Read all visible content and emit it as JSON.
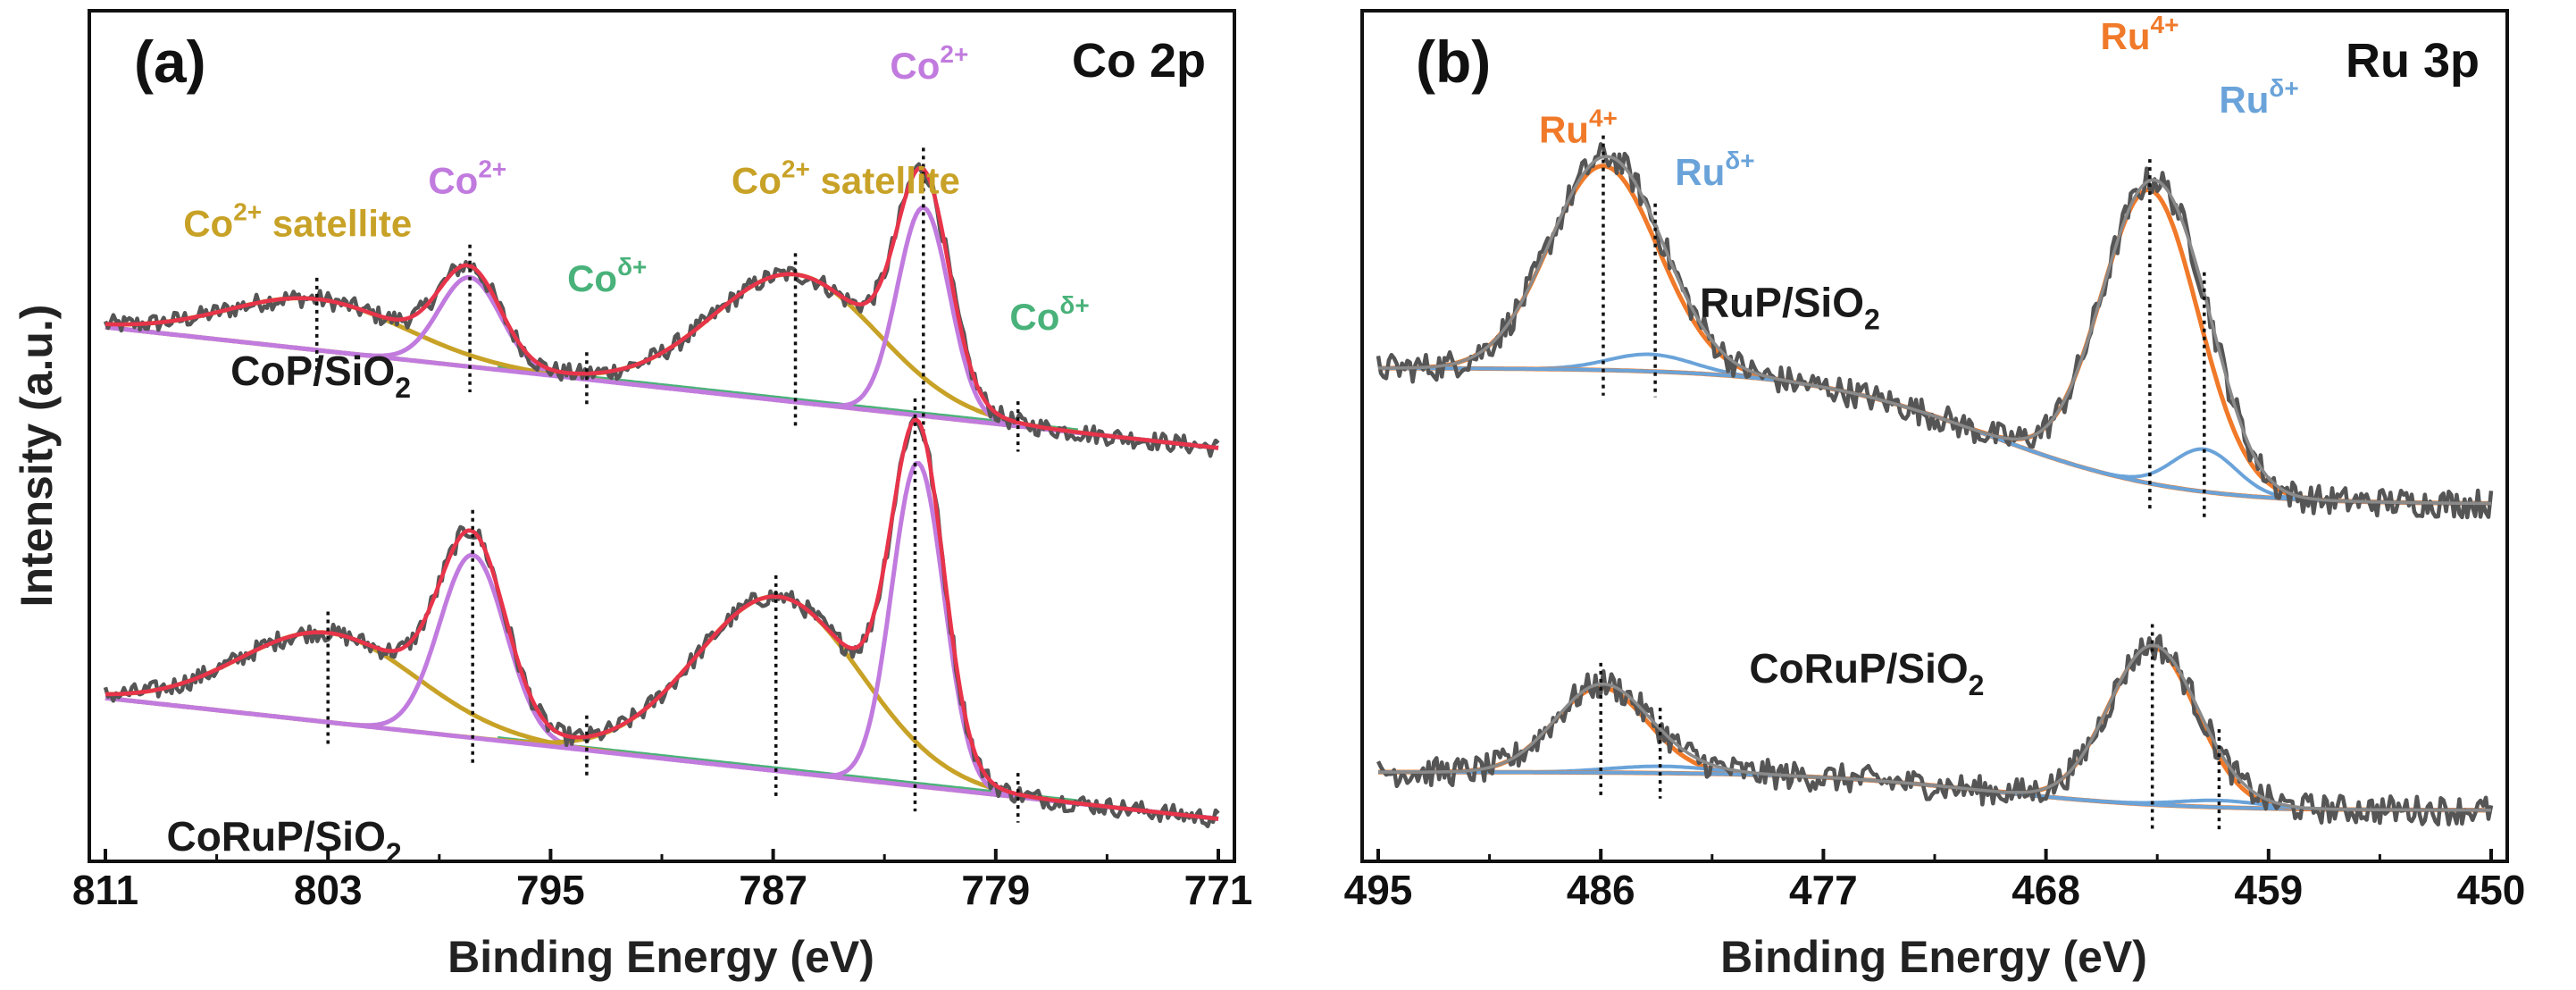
{
  "figure": {
    "y_axis_title": "Intensity (a.u.)",
    "x_axis_title": "Binding Energy (eV)"
  },
  "chart_data": [
    {
      "type": "line",
      "panel_label": "(a)",
      "title": "Co 2p",
      "xlabel": "Binding Energy (eV)",
      "ylabel": "Intensity (a.u.)",
      "xlim": [
        811,
        771
      ],
      "x_ticks": [
        "811",
        "803",
        "795",
        "787",
        "779",
        "771"
      ],
      "x_tick_values": [
        811,
        803,
        795,
        787,
        779,
        771
      ],
      "ylim": [
        0,
        1
      ],
      "colors": {
        "raw": "#555555",
        "envelope": "#e8344a",
        "co2": "#c17bde",
        "sat": "#c8a227",
        "codelta": "#49b27a",
        "background": "#9a6fd1"
      },
      "samples": [
        {
          "name": "CoP/SiO",
          "sub": "2",
          "baseline": [
            0.628,
            0.486
          ],
          "offset": 0.0,
          "peaks": [
            {
              "name": "Co2+ satellite",
              "center": 803.4,
              "fwhm": 7.5,
              "height": 0.06,
              "kind": "sat"
            },
            {
              "name": "Co2+",
              "center": 797.9,
              "fwhm": 2.6,
              "height": 0.105,
              "kind": "co2"
            },
            {
              "name": "Co2+ satellite",
              "center": 786.2,
              "fwhm": 7.0,
              "height": 0.15,
              "kind": "sat"
            },
            {
              "name": "Co2+",
              "center": 781.6,
              "fwhm": 2.2,
              "height": 0.245,
              "kind": "co2"
            }
          ],
          "markers": [
            803.4,
            797.9,
            793.7,
            786.2,
            781.6,
            778.2
          ]
        },
        {
          "name": "CoRuP/SiO",
          "sub": "2",
          "baseline": [
            0.192,
            0.05
          ],
          "offset": 0.0,
          "peaks": [
            {
              "name": "Co2+ satellite",
              "center": 803.0,
              "fwhm": 7.5,
              "height": 0.105,
              "kind": "sat"
            },
            {
              "name": "Co2+",
              "center": 797.8,
              "fwhm": 2.8,
              "height": 0.215,
              "kind": "co2"
            },
            {
              "name": "Co2+ satellite",
              "center": 786.8,
              "fwhm": 7.0,
              "height": 0.205,
              "kind": "sat"
            },
            {
              "name": "Co2+",
              "center": 781.8,
              "fwhm": 2.2,
              "height": 0.38,
              "kind": "co2"
            }
          ],
          "markers": [
            803.0,
            797.8,
            793.7,
            786.9,
            781.9,
            778.2
          ]
        }
      ],
      "annotations": [
        {
          "text": "Co",
          "sup": "2+",
          "suffix": " satellite",
          "kind": "sat",
          "x": 808.2,
          "y": 0.735
        },
        {
          "text": "Co",
          "sup": "2+",
          "suffix": "",
          "kind": "co2",
          "x": 799.4,
          "y": 0.785
        },
        {
          "text": "Co",
          "sup": "δ+",
          "suffix": "",
          "kind": "codelta",
          "x": 794.4,
          "y": 0.67
        },
        {
          "text": "Co",
          "sup": "2+",
          "suffix": " satellite",
          "kind": "sat",
          "x": 788.5,
          "y": 0.785
        },
        {
          "text": "Co",
          "sup": "2+",
          "suffix": "",
          "kind": "co2",
          "x": 782.8,
          "y": 0.92
        },
        {
          "text": "Co",
          "sup": "δ+",
          "suffix": "",
          "kind": "codelta",
          "x": 778.5,
          "y": 0.625
        }
      ]
    },
    {
      "type": "line",
      "panel_label": "(b)",
      "title": "Ru 3p",
      "xlabel": "Binding Energy (eV)",
      "ylabel": "Intensity (a.u.)",
      "xlim": [
        495,
        450
      ],
      "x_ticks": [
        "495",
        "486",
        "477",
        "468",
        "459",
        "450"
      ],
      "x_tick_values": [
        495,
        486,
        477,
        468,
        459,
        450
      ],
      "ylim": [
        0,
        1
      ],
      "colors": {
        "raw": "#555555",
        "ru4": "#f07a2a",
        "rud": "#6aa3d9"
      },
      "samples": [
        {
          "name": "RuP/SiO",
          "sub": "2",
          "baseline_left": 0.58,
          "baseline_right": 0.42,
          "peaks": [
            {
              "name": "Ru4+",
              "center": 485.9,
              "fwhm": 5.2,
              "height": 0.24,
              "kind": "ru4"
            },
            {
              "name": "Ruδ+",
              "center": 484.0,
              "fwhm": 4.0,
              "height": 0.02,
              "kind": "rud"
            },
            {
              "name": "Ru4+",
              "center": 463.8,
              "fwhm": 4.6,
              "height": 0.345,
              "kind": "ru4"
            },
            {
              "name": "Ruδ+",
              "center": 461.6,
              "fwhm": 3.0,
              "height": 0.05,
              "kind": "rud"
            }
          ],
          "markers": [
            485.9,
            483.8,
            463.8,
            461.6
          ]
        },
        {
          "name": "CoRuP/SiO",
          "sub": "2",
          "baseline_left": 0.105,
          "baseline_right": 0.06,
          "peaks": [
            {
              "name": "Ru4+",
              "center": 486.0,
              "fwhm": 4.4,
              "height": 0.1,
              "kind": "ru4"
            },
            {
              "name": "Ruδ+",
              "center": 483.5,
              "fwhm": 5.0,
              "height": 0.008,
              "kind": "rud"
            },
            {
              "name": "Ru4+",
              "center": 463.7,
              "fwhm": 4.2,
              "height": 0.185,
              "kind": "ru4"
            },
            {
              "name": "Ruδ+",
              "center": 461.0,
              "fwhm": 4.0,
              "height": 0.008,
              "kind": "rud"
            }
          ],
          "markers": [
            486.0,
            483.6,
            463.7,
            461.0
          ]
        }
      ],
      "annotations": [
        {
          "text": "Ru",
          "sup": "4+",
          "kind": "ru4",
          "x": 488.5,
          "y": 0.845
        },
        {
          "text": "Ru",
          "sup": "δ+",
          "kind": "rud",
          "x": 483.0,
          "y": 0.795
        },
        {
          "text": "Ru",
          "sup": "4+",
          "kind": "ru4",
          "x": 465.8,
          "y": 0.955
        },
        {
          "text": "Ru",
          "sup": "δ+",
          "kind": "rud",
          "x": 461.0,
          "y": 0.88
        }
      ]
    }
  ]
}
